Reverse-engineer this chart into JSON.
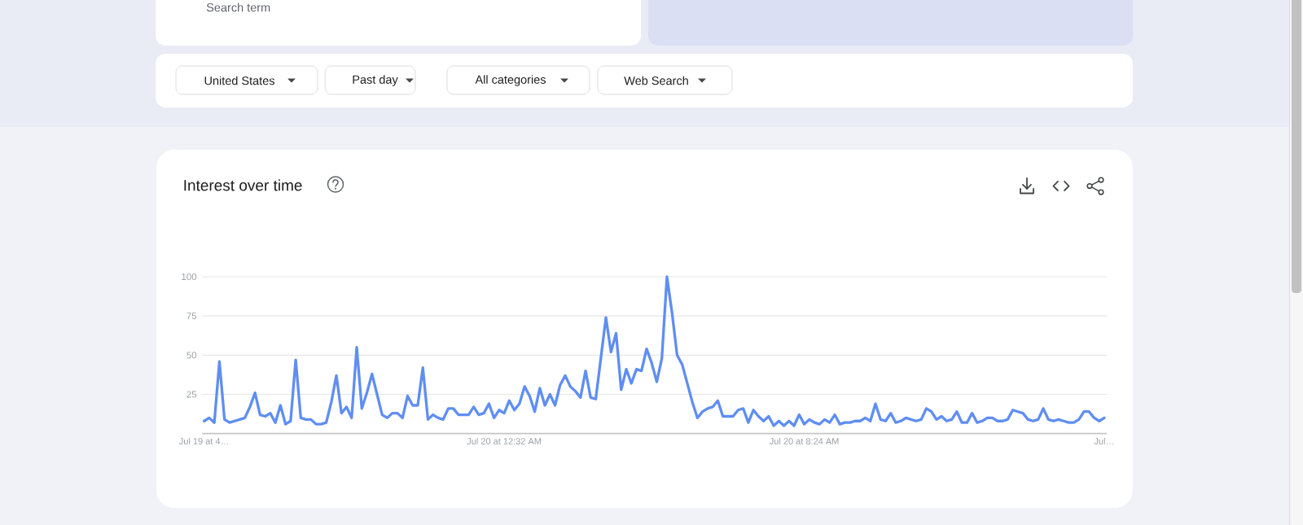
{
  "chart_data": {
    "type": "line",
    "title": "Interest over time",
    "annotations": [
      "Search term",
      "United States",
      "Past day",
      "All categories",
      "Web Search"
    ],
    "categories": [
      "Jul 19 at 4…",
      null,
      null,
      null,
      null,
      null,
      null,
      null,
      null,
      null,
      null,
      null,
      null,
      null,
      null,
      null,
      null,
      null,
      null,
      null,
      null,
      null,
      null,
      null,
      null,
      null,
      null,
      null,
      null,
      null,
      null,
      null,
      null,
      null,
      null,
      null,
      null,
      null,
      null,
      null,
      null,
      null,
      null,
      null,
      null,
      null,
      null,
      null,
      null,
      null,
      null,
      null,
      null,
      null,
      null,
      null,
      null,
      null,
      null,
      "Jul 20 at 12:32 AM",
      null,
      null,
      null,
      null,
      null,
      null,
      null,
      null,
      null,
      null,
      null,
      null,
      null,
      null,
      null,
      null,
      null,
      null,
      null,
      null,
      null,
      null,
      null,
      null,
      null,
      null,
      null,
      null,
      null,
      null,
      null,
      null,
      null,
      null,
      null,
      null,
      null,
      null,
      null,
      null,
      null,
      null,
      null,
      null,
      null,
      null,
      null,
      null,
      null,
      null,
      null,
      null,
      null,
      null,
      null,
      null,
      null,
      null,
      "Jul 20 at 8:24 AM",
      null,
      null,
      null,
      null,
      null,
      null,
      null,
      null,
      null,
      null,
      null,
      null,
      null,
      null,
      null,
      null,
      null,
      null,
      null,
      null,
      null,
      null,
      null,
      null,
      null,
      null,
      null,
      null,
      null,
      null,
      null,
      null,
      null,
      null,
      null,
      null,
      null,
      null,
      null,
      null,
      null,
      null,
      null,
      null,
      null,
      null,
      null,
      null,
      null,
      null,
      null,
      null,
      null,
      null,
      null,
      null,
      null,
      null,
      "Jul…"
    ],
    "series": [
      {
        "color": "#5f8ef2",
        "values": [
          8,
          10,
          7,
          46,
          9,
          7,
          8,
          9,
          10,
          17,
          26,
          12,
          11,
          13,
          7,
          18,
          6,
          8,
          47,
          10,
          9,
          9,
          6,
          6,
          7,
          20,
          37,
          13,
          17,
          10,
          55,
          16,
          26,
          38,
          25,
          12,
          10,
          13,
          13,
          10,
          24,
          18,
          18,
          42,
          9,
          12,
          10,
          9,
          16,
          16,
          12,
          12,
          12,
          17,
          12,
          13,
          19,
          10,
          15,
          13,
          21,
          15,
          19,
          30,
          24,
          14,
          29,
          18,
          25,
          18,
          31,
          37,
          30,
          27,
          23,
          40,
          23,
          22,
          48,
          74,
          52,
          64,
          28,
          41,
          32,
          41,
          40,
          54,
          45,
          33,
          48,
          100,
          77,
          50,
          44,
          32,
          20,
          10,
          14,
          16,
          17,
          21,
          11,
          11,
          11,
          15,
          16,
          7,
          15,
          11,
          8,
          11,
          5,
          8,
          5,
          8,
          5,
          12,
          6,
          9,
          7,
          6,
          9,
          7,
          12,
          6,
          7,
          7,
          8,
          8,
          10,
          8,
          19,
          9,
          8,
          13,
          7,
          8,
          10,
          9,
          8,
          9,
          16,
          14,
          9,
          11,
          8,
          9,
          14,
          7,
          7,
          13,
          7,
          8,
          10,
          10,
          8,
          8,
          9,
          15,
          14,
          13,
          9,
          8,
          9,
          16,
          9,
          8,
          9,
          8,
          7,
          7,
          9,
          14,
          14,
          10,
          8,
          10
        ]
      }
    ],
    "ylim": [
      0,
      100
    ],
    "yticks": [
      25,
      50,
      75,
      100
    ],
    "grid": "y"
  }
}
